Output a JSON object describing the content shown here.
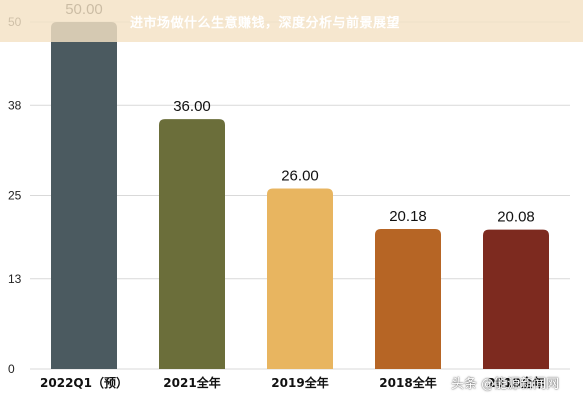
{
  "overlay_title": "进市场做什么生意赚钱，深度分析与前景展望",
  "watermark": "头条 @能源新闻网",
  "chart_data": {
    "type": "bar",
    "categories": [
      "2022Q1（预）",
      "2021全年",
      "2019全年",
      "2018全年",
      "2018全年"
    ],
    "values": [
      50.0,
      36.0,
      26.0,
      20.18,
      20.08
    ],
    "value_labels": [
      "50.00",
      "36.00",
      "26.00",
      "20.18",
      "20.08"
    ],
    "colors": [
      "#4b5a60",
      "#6b6e3a",
      "#e8b560",
      "#b66525",
      "#7d2a1f"
    ],
    "ylim": [
      0,
      50
    ],
    "y_ticks": [
      0,
      13,
      25,
      38,
      50
    ],
    "y_tick_labels": [
      "0",
      "13",
      "25",
      "38",
      "50"
    ],
    "grid": true,
    "title": "",
    "xlabel": "",
    "ylabel": ""
  }
}
